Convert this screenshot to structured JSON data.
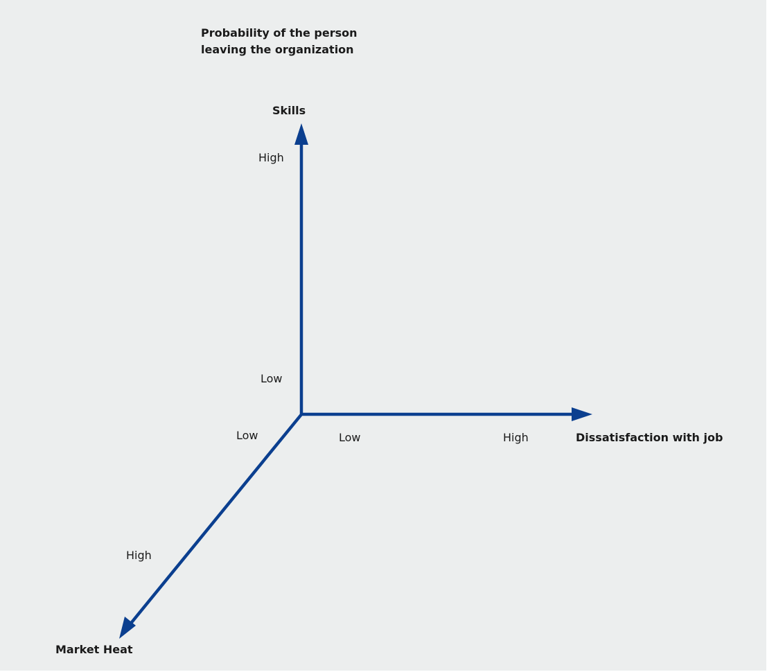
{
  "diagram": {
    "title_lines": [
      "Probability of the person",
      "leaving the organization"
    ],
    "axes": [
      {
        "id": "skills",
        "name": "Skills",
        "low_label": "Low",
        "high_label": "High"
      },
      {
        "id": "dissatisfaction",
        "name": "Dissatisfaction with job",
        "low_label": "Low",
        "high_label": "High"
      },
      {
        "id": "market-heat",
        "name": "Market Heat",
        "low_label": "Low",
        "high_label": "High"
      }
    ],
    "colors": {
      "axis": "#0b3f8f",
      "background": "#eceeee",
      "text": "#1a1a1a"
    }
  }
}
